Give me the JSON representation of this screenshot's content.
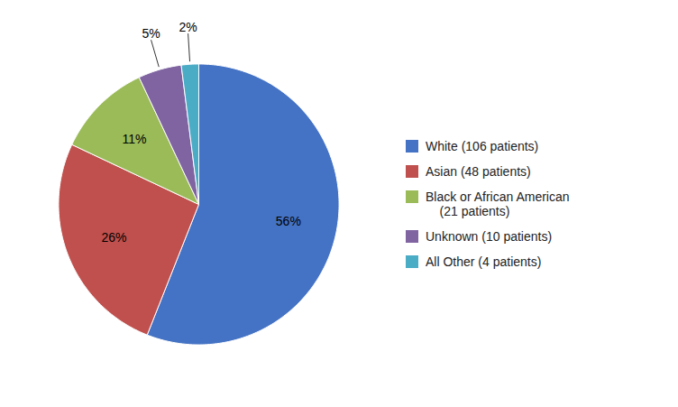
{
  "chart_data": {
    "type": "pie",
    "categories": [
      "White (106 patients)",
      "Asian (48 patients)",
      "Black or African American\n    (21 patients)",
      "Unknown (10 patients)",
      "All Other (4 patients)"
    ],
    "values": [
      56,
      26,
      11,
      5,
      2
    ],
    "value_labels": [
      "56%",
      "26%",
      "11%",
      "5%",
      "2%"
    ],
    "colors": [
      "#4472C4",
      "#C0504D",
      "#9BBB59",
      "#8064A2",
      "#4BACC6"
    ],
    "data_labels": true,
    "legend": "right"
  }
}
